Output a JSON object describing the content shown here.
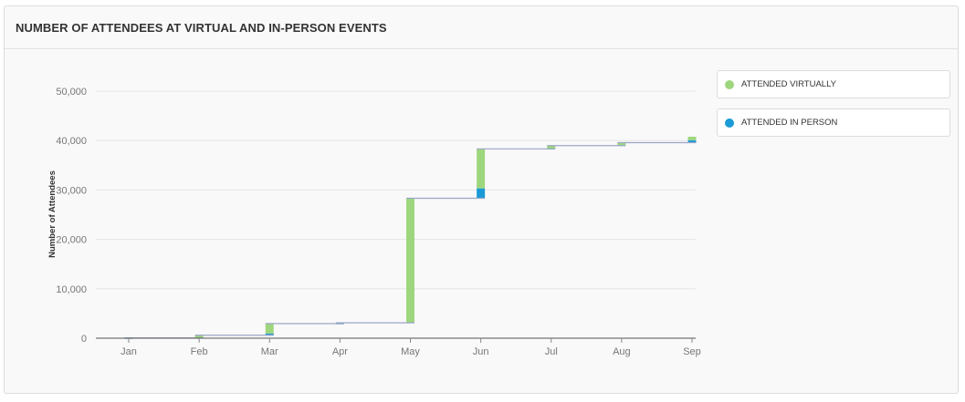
{
  "card": {
    "title": "NUMBER OF ATTENDEES AT VIRTUAL AND IN-PERSON EVENTS"
  },
  "legend": {
    "items": [
      {
        "label": "ATTENDED VIRTUALLY",
        "color": "#9ed67e"
      },
      {
        "label": "ATTENDED IN PERSON",
        "color": "#1a9ad6"
      }
    ]
  },
  "chart_data": {
    "type": "bar",
    "subtype": "stacked-waterfall",
    "title": "NUMBER OF ATTENDEES AT VIRTUAL AND IN-PERSON EVENTS",
    "xlabel": "",
    "ylabel": "Number of Attendees",
    "ylim": [
      0,
      50000
    ],
    "yticks": [
      0,
      10000,
      20000,
      30000,
      40000,
      50000
    ],
    "ytick_labels": [
      "0",
      "10,000",
      "20,000",
      "30,000",
      "40,000",
      "50,000"
    ],
    "categories": [
      "Jan",
      "Feb",
      "Mar",
      "Apr",
      "May",
      "Jun",
      "Jul",
      "Aug",
      "Sep"
    ],
    "series": [
      {
        "name": "ATTENDED IN PERSON",
        "color": "#1a9ad6",
        "values": [
          20,
          50,
          350,
          20,
          100,
          2000,
          50,
          100,
          500
        ]
      },
      {
        "name": "ATTENDED VIRTUALLY",
        "color": "#9ed67e",
        "values": [
          30,
          500,
          2000,
          150,
          25100,
          8000,
          600,
          500,
          700
        ]
      }
    ],
    "cumulative_totals": [
      50,
      600,
      2950,
      3120,
      28320,
      38320,
      38970,
      39570,
      40770
    ],
    "connector_color": "#9aa6c6",
    "grid": true,
    "legend_position": "right"
  }
}
